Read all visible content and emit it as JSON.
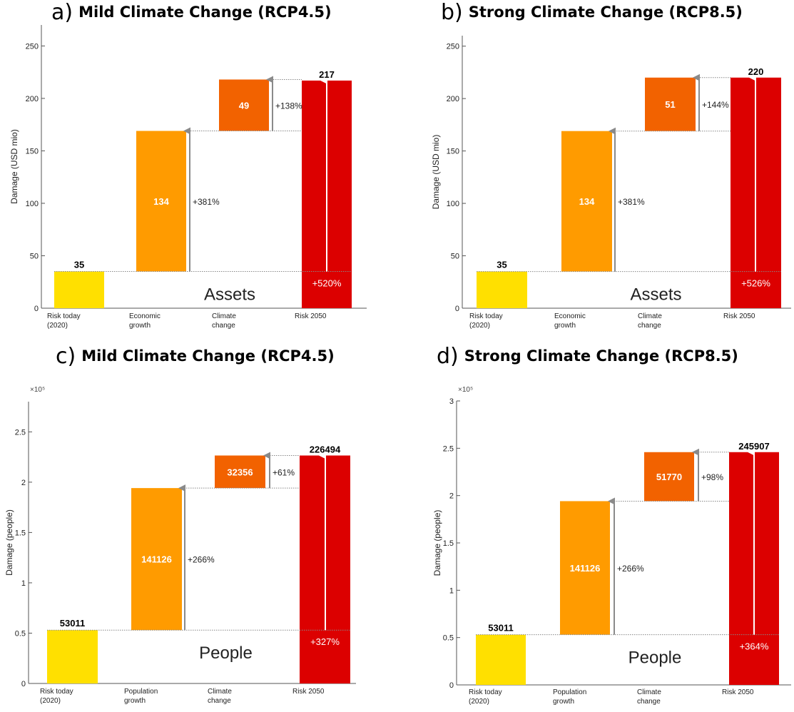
{
  "colors": {
    "risk_today": "#FFE000",
    "growth": "#FF9B00",
    "climate": "#F26200",
    "risk_2050": "#DC0000",
    "arrow": "#8a8a8a",
    "axis": "#555555"
  },
  "chart_data": [
    {
      "type": "bar",
      "panel_letter": "a)",
      "title": "Mild Climate Change (RCP4.5)",
      "ylabel": "Damage (USD mio)",
      "ylim": [
        0,
        270
      ],
      "yticks": [
        0,
        50,
        100,
        150,
        200,
        250
      ],
      "ytick_labels": [
        "0",
        "50",
        "100",
        "150",
        "200",
        "250"
      ],
      "exponent_label": "",
      "categories": [
        "Risk today\n(2020)",
        "Economic\ngrowth",
        "Climate\nchange",
        "Risk 2050"
      ],
      "values": [
        35,
        134,
        49,
        217
      ],
      "value_labels": [
        "35",
        "134",
        "49",
        "217"
      ],
      "growth_pct": "+381%",
      "climate_pct": "+138%",
      "total_pct": "+520%",
      "annotation": "Assets"
    },
    {
      "type": "bar",
      "panel_letter": "b)",
      "title": "Strong Climate Change (RCP8.5)",
      "ylabel": "Damage (USD mio)",
      "ylim": [
        0,
        260
      ],
      "yticks": [
        0,
        50,
        100,
        150,
        200,
        250
      ],
      "ytick_labels": [
        "0",
        "50",
        "100",
        "150",
        "200",
        "250"
      ],
      "exponent_label": "",
      "categories": [
        "Risk today\n(2020)",
        "Economic\ngrowth",
        "Climate\nchange",
        "Risk 2050"
      ],
      "values": [
        35,
        134,
        51,
        220
      ],
      "value_labels": [
        "35",
        "134",
        "51",
        "220"
      ],
      "growth_pct": "+381%",
      "climate_pct": "+144%",
      "total_pct": "+526%",
      "annotation": "Assets"
    },
    {
      "type": "bar",
      "panel_letter": "c)",
      "title": "Mild Climate Change (RCP4.5)",
      "ylabel": "Damage (people)",
      "ylim": [
        0,
        280000
      ],
      "yticks": [
        0,
        50000,
        100000,
        150000,
        200000,
        250000
      ],
      "ytick_labels": [
        "0",
        "0.5",
        "1",
        "1.5",
        "2",
        "2.5"
      ],
      "exponent_label": "×10⁵",
      "categories": [
        "Risk today\n(2020)",
        "Population\ngrowth",
        "Climate\nchange",
        "Risk 2050"
      ],
      "values": [
        53011,
        141126,
        32356,
        226494
      ],
      "value_labels": [
        "53011",
        "141126",
        "32356",
        "226494"
      ],
      "growth_pct": "+266%",
      "climate_pct": "+61%",
      "total_pct": "+327%",
      "annotation": "People"
    },
    {
      "type": "bar",
      "panel_letter": "d)",
      "title": "Strong Climate Change (RCP8.5)",
      "ylabel": "Damage (people)",
      "ylim": [
        0,
        300000
      ],
      "yticks": [
        0,
        50000,
        100000,
        150000,
        200000,
        250000,
        300000
      ],
      "ytick_labels": [
        "0",
        "0.5",
        "1",
        "1.5",
        "2",
        "2.5",
        "3"
      ],
      "exponent_label": "×10⁵",
      "categories": [
        "Risk today\n(2020)",
        "Population\ngrowth",
        "Climate\nchange",
        "Risk 2050"
      ],
      "values": [
        53011,
        141126,
        51770,
        245907
      ],
      "value_labels": [
        "53011",
        "141126",
        "51770",
        "245907"
      ],
      "growth_pct": "+266%",
      "climate_pct": "+98%",
      "total_pct": "+364%",
      "annotation": "People"
    }
  ]
}
